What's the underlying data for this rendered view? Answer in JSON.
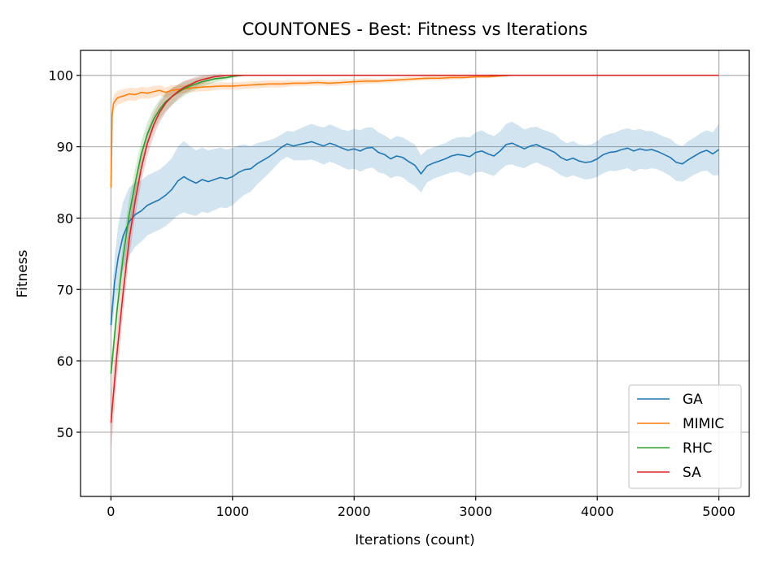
{
  "chart_data": {
    "type": "line",
    "title": "COUNTONES - Best: Fitness vs Iterations",
    "xlabel": "Iterations (count)",
    "ylabel": "Fitness",
    "xlim": [
      -250,
      5250
    ],
    "ylim": [
      41,
      103.5
    ],
    "xticks": [
      0,
      1000,
      2000,
      3000,
      4000,
      5000
    ],
    "yticks": [
      50,
      60,
      70,
      80,
      90,
      100
    ],
    "grid": true,
    "legend_position": "lower right",
    "series": [
      {
        "name": "GA",
        "color": "#1f77b4",
        "x": [
          0,
          30,
          60,
          100,
          150,
          200,
          250,
          300,
          350,
          400,
          450,
          500,
          550,
          600,
          650,
          700,
          750,
          800,
          850,
          900,
          950,
          1000,
          1050,
          1100,
          1150,
          1200,
          1250,
          1300,
          1350,
          1400,
          1450,
          1500,
          1550,
          1600,
          1650,
          1700,
          1750,
          1800,
          1850,
          1900,
          1950,
          2000,
          2050,
          2100,
          2150,
          2200,
          2250,
          2300,
          2350,
          2400,
          2450,
          2500,
          2550,
          2600,
          2650,
          2700,
          2750,
          2800,
          2850,
          2900,
          2950,
          3000,
          3050,
          3100,
          3150,
          3200,
          3250,
          3300,
          3350,
          3400,
          3450,
          3500,
          3550,
          3600,
          3650,
          3700,
          3750,
          3800,
          3850,
          3900,
          3950,
          4000,
          4050,
          4100,
          4150,
          4200,
          4250,
          4300,
          4350,
          4400,
          4450,
          4500,
          4550,
          4600,
          4650,
          4700,
          4750,
          4800,
          4850,
          4900,
          4950,
          5000
        ],
        "y": [
          65,
          71,
          74.5,
          77.5,
          79.5,
          80.5,
          81,
          81.8,
          82.2,
          82.6,
          83.2,
          84,
          85.2,
          85.8,
          85.3,
          84.9,
          85.4,
          85.1,
          85.4,
          85.7,
          85.5,
          85.8,
          86.4,
          86.8,
          86.9,
          87.6,
          88.1,
          88.6,
          89.2,
          89.9,
          90.4,
          90.1,
          90.3,
          90.5,
          90.7,
          90.4,
          90.1,
          90.5,
          90.2,
          89.8,
          89.5,
          89.7,
          89.4,
          89.8,
          89.9,
          89.2,
          88.9,
          88.3,
          88.7,
          88.5,
          87.9,
          87.4,
          86.2,
          87.3,
          87.7,
          88,
          88.3,
          88.7,
          88.9,
          88.8,
          88.6,
          89.2,
          89.4,
          89,
          88.7,
          89.4,
          90.3,
          90.5,
          90.1,
          89.7,
          90.1,
          90.3,
          89.9,
          89.6,
          89.2,
          88.5,
          88.1,
          88.4,
          88,
          87.8,
          87.9,
          88.3,
          88.9,
          89.2,
          89.3,
          89.6,
          89.8,
          89.4,
          89.7,
          89.5,
          89.6,
          89.3,
          88.9,
          88.5,
          87.8,
          87.6,
          88.2,
          88.7,
          89.2,
          89.5,
          89,
          89.6
        ],
        "band": [
          1.5,
          3.5,
          4.5,
          4.8,
          4.8,
          4.5,
          4.3,
          4.2,
          4.2,
          4.2,
          4.3,
          4.4,
          4.8,
          5,
          4.8,
          4.6,
          4.5,
          4.4,
          4.3,
          4.2,
          4.1,
          4,
          3.8,
          3.5,
          3.2,
          2.9,
          2.6,
          2.3,
          2,
          1.8,
          1.8,
          2,
          2.2,
          2.4,
          2.5,
          2.5,
          2.6,
          2.6,
          2.6,
          2.6,
          2.7,
          2.8,
          2.9,
          2.9,
          2.8,
          2.8,
          2.7,
          2.7,
          2.8,
          2.8,
          2.9,
          2.9,
          2.6,
          2.3,
          2.2,
          2.2,
          2.2,
          2.3,
          2.4,
          2.6,
          2.7,
          2.8,
          2.9,
          2.8,
          2.8,
          2.7,
          2.9,
          3,
          2.9,
          2.7,
          2.6,
          2.5,
          2.5,
          2.5,
          2.6,
          2.5,
          2.4,
          2.4,
          2.3,
          2.4,
          2.4,
          2.5,
          2.6,
          2.6,
          2.7,
          2.8,
          2.8,
          2.9,
          2.8,
          2.7,
          2.6,
          2.5,
          2.5,
          2.6,
          2.6,
          2.5,
          2.6,
          2.6,
          2.7,
          2.8,
          3,
          3.6
        ]
      },
      {
        "name": "MIMIC",
        "color": "#ff7f0e",
        "x": [
          0,
          10,
          20,
          40,
          60,
          100,
          150,
          200,
          250,
          300,
          350,
          400,
          450,
          500,
          600,
          700,
          800,
          900,
          1000,
          1100,
          1200,
          1300,
          1400,
          1500,
          1600,
          1700,
          1800,
          1900,
          2000,
          2100,
          2200,
          2300,
          2400,
          2500,
          2600,
          2700,
          2800,
          2900,
          3000,
          3100,
          3200,
          3300
        ],
        "y": [
          84.3,
          94.5,
          96,
          96.6,
          96.9,
          97.1,
          97.4,
          97.3,
          97.6,
          97.5,
          97.7,
          97.9,
          97.6,
          97.9,
          98.1,
          98.3,
          98.4,
          98.5,
          98.5,
          98.6,
          98.7,
          98.8,
          98.8,
          98.9,
          98.9,
          99,
          98.9,
          99,
          99.1,
          99.2,
          99.2,
          99.3,
          99.4,
          99.5,
          99.6,
          99.6,
          99.7,
          99.7,
          99.8,
          99.8,
          99.9,
          100
        ],
        "band": [
          0.3,
          1,
          1.1,
          1,
          1,
          0.9,
          0.9,
          0.9,
          0.8,
          0.8,
          0.8,
          0.7,
          0.7,
          0.7,
          0.6,
          0.6,
          0.6,
          0.5,
          0.5,
          0.5,
          0.5,
          0.5,
          0.5,
          0.4,
          0.4,
          0.4,
          0.4,
          0.4,
          0.4,
          0.4,
          0.3,
          0.3,
          0.3,
          0.3,
          0.3,
          0.3,
          0.3,
          0.2,
          0.2,
          0.2,
          0.1,
          0
        ]
      },
      {
        "name": "RHC",
        "color": "#2ca02c",
        "x": [
          0,
          50,
          100,
          150,
          200,
          250,
          300,
          350,
          400,
          450,
          500,
          550,
          600,
          650,
          700,
          750,
          800,
          850,
          900,
          950,
          1000,
          1050,
          1100
        ],
        "y": [
          58.2,
          67,
          74.5,
          80.5,
          85,
          89,
          91.8,
          93.8,
          95.2,
          96.3,
          97,
          97.6,
          98.1,
          98.5,
          98.8,
          99.1,
          99.3,
          99.5,
          99.6,
          99.7,
          99.85,
          99.95,
          100
        ],
        "band": [
          1.5,
          2,
          2.2,
          2.2,
          2,
          1.8,
          1.6,
          1.5,
          1.4,
          1.3,
          1.2,
          1.1,
          1,
          0.9,
          0.8,
          0.7,
          0.6,
          0.5,
          0.4,
          0.3,
          0.2,
          0.1,
          0
        ]
      },
      {
        "name": "SA",
        "color": "#d62728",
        "x": [
          0,
          50,
          100,
          150,
          200,
          250,
          300,
          350,
          400,
          450,
          500,
          550,
          600,
          650,
          700,
          750,
          800,
          850,
          900,
          950,
          1000,
          1500,
          2000,
          2500,
          3000,
          3500,
          4000,
          4500,
          5000
        ],
        "y": [
          51.3,
          61,
          69.5,
          77,
          82.5,
          87,
          90.5,
          93,
          94.8,
          96.1,
          97,
          97.7,
          98.3,
          98.7,
          99.1,
          99.4,
          99.6,
          99.8,
          99.9,
          100,
          100,
          100,
          100,
          100,
          100,
          100,
          100,
          100,
          100
        ],
        "band": [
          4,
          3.5,
          3,
          2.5,
          2.2,
          2,
          1.8,
          1.6,
          1.4,
          1.3,
          1.2,
          1,
          0.9,
          0.8,
          0.7,
          0.6,
          0.5,
          0.4,
          0.3,
          0.1,
          0,
          0,
          0,
          0,
          0,
          0,
          0,
          0,
          0
        ]
      }
    ]
  }
}
